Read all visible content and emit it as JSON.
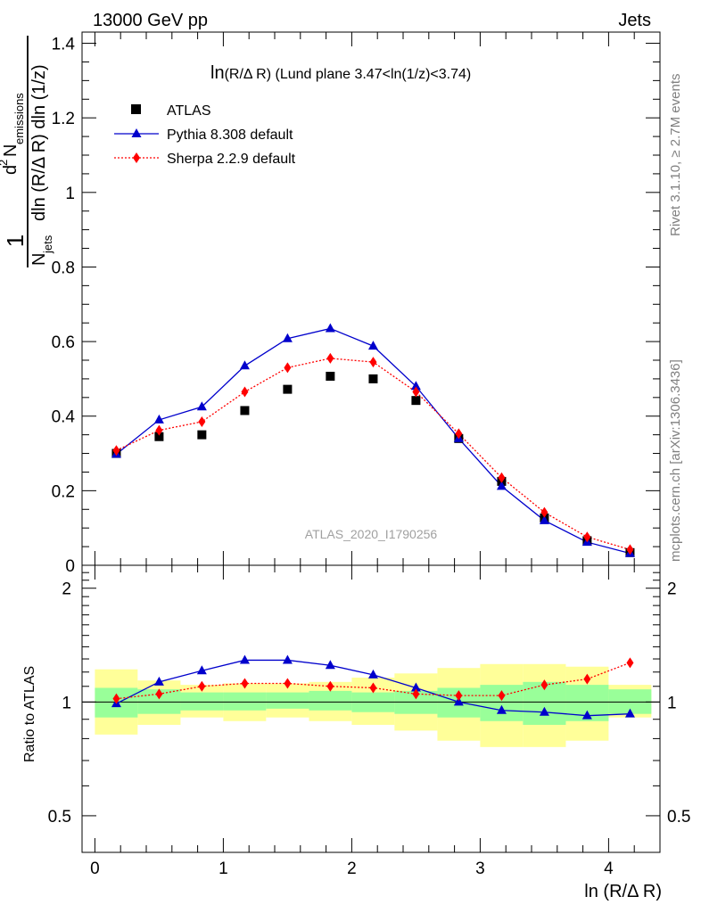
{
  "header": {
    "left": "13000 GeV pp",
    "right": "Jets"
  },
  "side_labels": {
    "rivet": "Rivet 3.1.10, ≥ 2.7M events",
    "mcplots": "mcplots.cern.ch [arXiv:1306.3436]"
  },
  "chart_data": [
    {
      "type": "scatter",
      "title": "ln(R/Δ R) (Lund plane 3.47<ln(1/z)<3.74)",
      "title_parts": {
        "main": "ln",
        "paren": "(R/Δ R)",
        "rest": " (Lund plane 3.47<ln(1/z)<3.74)"
      },
      "ylabel": {
        "frac": "1",
        "njets": "N",
        "njets_sub": "jets",
        "d2": "d",
        "d2_sup": "2",
        "n_emis": "N",
        "n_emis_sub": "emissions",
        "denominator": "dln (R/Δ R) dln (1/z)"
      },
      "xlim": [
        -0.1,
        4.4
      ],
      "ylim": [
        0,
        1.43
      ],
      "yticks": [
        0,
        0.2,
        0.4,
        0.6,
        0.8,
        1,
        1.2,
        1.4
      ],
      "ytick_labels": [
        "0",
        "0.2",
        "0.4",
        "0.6",
        "0.8",
        "1",
        "1.2",
        "1.4"
      ],
      "watermark": "ATLAS_2020_I1790256",
      "legend_position": "top-left",
      "x": [
        0.167,
        0.5,
        0.833,
        1.167,
        1.5,
        1.833,
        2.167,
        2.5,
        2.833,
        3.167,
        3.5,
        3.833,
        4.167
      ],
      "series": [
        {
          "name": "ATLAS",
          "style": "data",
          "color": "#000000",
          "values": [
            0.3,
            0.345,
            0.35,
            0.415,
            0.472,
            0.507,
            0.5,
            0.442,
            0.34,
            0.225,
            0.127,
            0.066,
            0.034
          ]
        },
        {
          "name": "Pythia 8.308 default",
          "style": "line",
          "color": "#0000cc",
          "values": [
            0.298,
            0.39,
            0.425,
            0.535,
            0.608,
            0.635,
            0.588,
            0.48,
            0.34,
            0.212,
            0.12,
            0.062,
            0.032
          ]
        },
        {
          "name": "Sherpa 2.2.9 default",
          "style": "dotted",
          "color": "#ff0000",
          "values": [
            0.308,
            0.362,
            0.385,
            0.465,
            0.53,
            0.555,
            0.545,
            0.465,
            0.353,
            0.235,
            0.142,
            0.076,
            0.042
          ]
        }
      ]
    },
    {
      "type": "scatter",
      "ylabel": "Ratio to ATLAS",
      "xlabel": "ln (R/Δ R)",
      "xlim": [
        -0.1,
        4.4
      ],
      "ylim": [
        0.4,
        2.3
      ],
      "log_y": true,
      "xticks": [
        0,
        1,
        2,
        3,
        4
      ],
      "xtick_labels": [
        "0",
        "1",
        "2",
        "3",
        "4"
      ],
      "yticks": [
        0.5,
        1,
        2
      ],
      "ytick_labels": [
        "0.5",
        "1",
        "2"
      ],
      "bin_edges": [
        0,
        0.333,
        0.667,
        1.0,
        1.333,
        1.667,
        2.0,
        2.333,
        2.667,
        3.0,
        3.333,
        3.667,
        4.0,
        4.333
      ],
      "band_inner": [
        [
          0.91,
          1.09
        ],
        [
          0.93,
          1.08
        ],
        [
          0.95,
          1.06
        ],
        [
          0.95,
          1.06
        ],
        [
          0.96,
          1.06
        ],
        [
          0.95,
          1.07
        ],
        [
          0.94,
          1.06
        ],
        [
          0.93,
          1.07
        ],
        [
          0.91,
          1.09
        ],
        [
          0.89,
          1.11
        ],
        [
          0.87,
          1.13
        ],
        [
          0.89,
          1.11
        ],
        [
          0.93,
          1.08
        ]
      ],
      "band_outer": [
        [
          0.82,
          1.22
        ],
        [
          0.87,
          1.14
        ],
        [
          0.91,
          1.11
        ],
        [
          0.89,
          1.12
        ],
        [
          0.91,
          1.12
        ],
        [
          0.89,
          1.13
        ],
        [
          0.87,
          1.16
        ],
        [
          0.84,
          1.19
        ],
        [
          0.79,
          1.23
        ],
        [
          0.76,
          1.26
        ],
        [
          0.76,
          1.26
        ],
        [
          0.79,
          1.24
        ],
        [
          0.91,
          1.11
        ]
      ],
      "band_colors": {
        "outer": "#ffff99",
        "inner": "#99ff99"
      },
      "x": [
        0.167,
        0.5,
        0.833,
        1.167,
        1.5,
        1.833,
        2.167,
        2.5,
        2.833,
        3.167,
        3.5,
        3.833,
        4.167
      ],
      "series": [
        {
          "name": "Pythia 8.308 default",
          "style": "line",
          "color": "#0000cc",
          "values": [
            0.99,
            1.13,
            1.21,
            1.29,
            1.29,
            1.25,
            1.18,
            1.09,
            1.0,
            0.95,
            0.94,
            0.92,
            0.93
          ]
        },
        {
          "name": "Sherpa 2.2.9 default",
          "style": "dotted",
          "color": "#ff0000",
          "values": [
            1.02,
            1.05,
            1.1,
            1.12,
            1.12,
            1.1,
            1.09,
            1.05,
            1.04,
            1.04,
            1.11,
            1.15,
            1.27
          ]
        }
      ]
    }
  ]
}
